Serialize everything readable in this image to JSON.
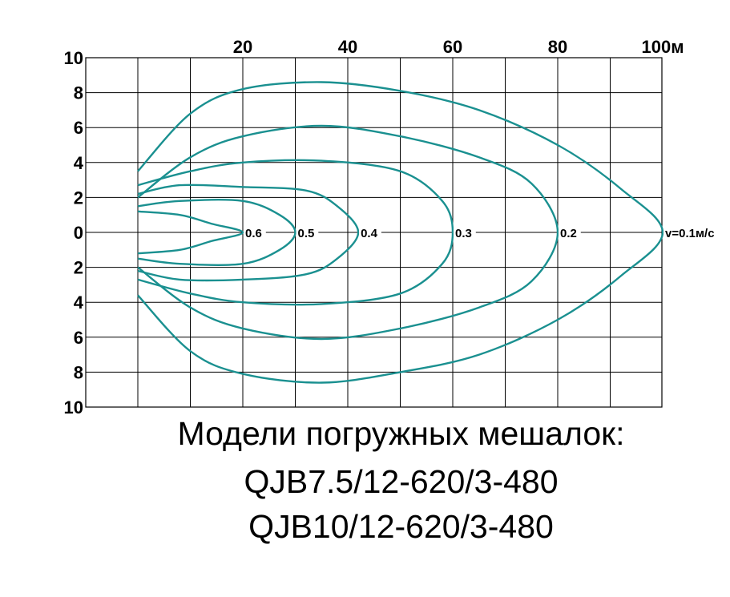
{
  "chart_data": {
    "type": "line",
    "title": "",
    "x_ticks": [
      "20",
      "40",
      "60",
      "80",
      "100м"
    ],
    "y_ticks": [
      "10",
      "8",
      "6",
      "4",
      "2",
      "0",
      "2",
      "4",
      "6",
      "8",
      "10"
    ],
    "xlim": [
      0,
      110
    ],
    "ylim": [
      -10,
      10
    ],
    "grid": true,
    "line_color": "#1a9090",
    "series": [
      {
        "name": "0.6",
        "label": "0.6",
        "points": [
          [
            0,
            1.2
          ],
          [
            8,
            1
          ],
          [
            14,
            0.5
          ],
          [
            20,
            0
          ],
          [
            14,
            -0.5
          ],
          [
            8,
            -1
          ],
          [
            0,
            -1.2
          ]
        ]
      },
      {
        "name": "0.5",
        "label": "0.5",
        "points": [
          [
            0,
            1.5
          ],
          [
            8,
            1.8
          ],
          [
            20,
            1.8
          ],
          [
            27,
            1
          ],
          [
            30,
            0
          ],
          [
            27,
            -1
          ],
          [
            20,
            -1.8
          ],
          [
            8,
            -1.8
          ],
          [
            0,
            -1.5
          ]
        ]
      },
      {
        "name": "0.4",
        "label": "0.4",
        "points": [
          [
            0,
            2.2
          ],
          [
            8,
            2.7
          ],
          [
            20,
            2.6
          ],
          [
            32,
            2.4
          ],
          [
            38,
            1.5
          ],
          [
            42,
            0
          ],
          [
            38,
            -1.5
          ],
          [
            32,
            -2.4
          ],
          [
            20,
            -2.7
          ],
          [
            8,
            -2.7
          ],
          [
            0,
            -2.2
          ]
        ]
      },
      {
        "name": "0.3",
        "label": "0.3",
        "points": [
          [
            0,
            2.7
          ],
          [
            10,
            3.5
          ],
          [
            20,
            4
          ],
          [
            35,
            4.1
          ],
          [
            50,
            3.5
          ],
          [
            58,
            1.8
          ],
          [
            60,
            0
          ],
          [
            58,
            -1.8
          ],
          [
            50,
            -3.5
          ],
          [
            35,
            -4.1
          ],
          [
            20,
            -4
          ],
          [
            10,
            -3.5
          ],
          [
            0,
            -2.7
          ]
        ]
      },
      {
        "name": "0.2",
        "label": "0.2",
        "points": [
          [
            0,
            2
          ],
          [
            10,
            4.3
          ],
          [
            20,
            5.5
          ],
          [
            35,
            6.1
          ],
          [
            50,
            5.5
          ],
          [
            65,
            4.3
          ],
          [
            75,
            2.8
          ],
          [
            80,
            0
          ],
          [
            75,
            -2.8
          ],
          [
            65,
            -4.3
          ],
          [
            50,
            -5.5
          ],
          [
            35,
            -6.1
          ],
          [
            20,
            -5.5
          ],
          [
            10,
            -4.3
          ],
          [
            0,
            -2
          ]
        ]
      },
      {
        "name": "v=0.1м/с",
        "label": "v=0.1м/с",
        "points": [
          [
            0,
            3.5
          ],
          [
            10,
            6.8
          ],
          [
            20,
            8.2
          ],
          [
            35,
            8.6
          ],
          [
            50,
            8.1
          ],
          [
            65,
            7
          ],
          [
            80,
            5
          ],
          [
            92,
            2.5
          ],
          [
            100,
            0
          ],
          [
            92,
            -2.5
          ],
          [
            80,
            -5
          ],
          [
            65,
            -7
          ],
          [
            50,
            -8
          ],
          [
            35,
            -8.6
          ],
          [
            20,
            -8.1
          ],
          [
            10,
            -6.8
          ],
          [
            0,
            -3.6
          ]
        ]
      }
    ]
  },
  "caption": {
    "line1": "Модели погружных мешалок:",
    "line2": "QJB7.5/12-620/3-480",
    "line3": "QJB10/12-620/3-480"
  }
}
